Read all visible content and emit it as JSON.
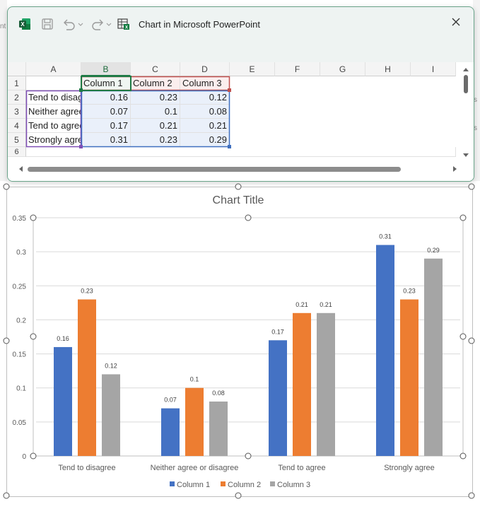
{
  "window": {
    "title": "Chart in Microsoft PowerPoint",
    "icons": [
      "excel-icon",
      "save-icon",
      "undo-icon",
      "redo-icon",
      "edit-data-icon",
      "close-icon"
    ]
  },
  "background_fragments": {
    "left_text": "nt",
    "right_text_1": "s",
    "right_text_2": "s"
  },
  "sheet": {
    "columns": [
      "A",
      "B",
      "C",
      "D",
      "E",
      "F",
      "G",
      "H",
      "I"
    ],
    "rows": [
      "1",
      "2",
      "3",
      "4",
      "5",
      "6"
    ],
    "header_row": [
      "",
      "Column 1",
      "Column 2",
      "Column 3"
    ],
    "data_rows": [
      [
        "Tend to disagree",
        "0.16",
        "0.23",
        "0.12"
      ],
      [
        "Neither agree or disagree",
        "0.07",
        "0.1",
        "0.08"
      ],
      [
        "Tend to agree",
        "0.17",
        "0.21",
        "0.21"
      ],
      [
        "Strongly agree",
        "0.31",
        "0.23",
        "0.29"
      ]
    ]
  },
  "chart_data": {
    "type": "bar",
    "title": "Chart Title",
    "categories": [
      "Tend to disagree",
      "Neither agree or disagree",
      "Tend to agree",
      "Strongly agree"
    ],
    "series": [
      {
        "name": "Column 1",
        "values": [
          0.16,
          0.07,
          0.17,
          0.31
        ],
        "color": "#4472c4"
      },
      {
        "name": "Column 2",
        "values": [
          0.23,
          0.1,
          0.21,
          0.23
        ],
        "color": "#ed7d31"
      },
      {
        "name": "Column 3",
        "values": [
          0.12,
          0.08,
          0.21,
          0.29
        ],
        "color": "#a5a5a5"
      }
    ],
    "ylim": [
      0,
      0.35
    ],
    "yticks": [
      "0",
      "0.05",
      "0.1",
      "0.15",
      "0.2",
      "0.25",
      "0.3",
      "0.35"
    ],
    "grid": true,
    "legend": "bottom",
    "data_labels": true
  }
}
